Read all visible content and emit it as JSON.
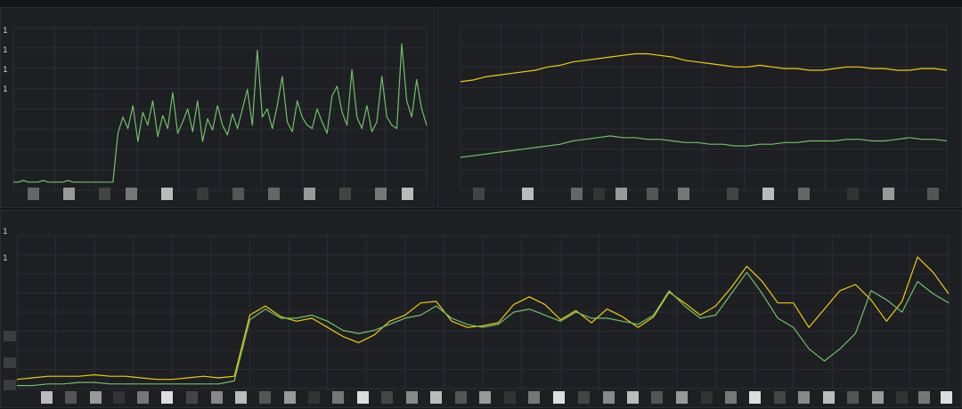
{
  "colors": {
    "green": "#73bf69",
    "yellow": "#f2cc0c",
    "grid": "#2b2e33",
    "panel_bg": "#1d1f23",
    "page_bg": "#141518"
  },
  "panels": {
    "top_left": {
      "y_ticks": [
        "1",
        "1",
        "1",
        "1"
      ],
      "series": [
        {
          "color": "green",
          "style": "spiky"
        }
      ]
    },
    "top_right": {
      "y_ticks": [],
      "series": [
        {
          "color": "yellow"
        },
        {
          "color": "green"
        }
      ]
    },
    "bottom": {
      "y_ticks": [
        "1",
        "1"
      ],
      "series": [
        {
          "color": "yellow"
        },
        {
          "color": "green"
        }
      ]
    }
  },
  "chart_data": [
    {
      "type": "line",
      "title": "",
      "xlabel": "",
      "ylabel": "",
      "grid": true,
      "series": [
        {
          "color": "#73bf69",
          "y": [
            0.05,
            0.05,
            0.06,
            0.05,
            0.05,
            0.05,
            0.06,
            0.05,
            0.05,
            0.05,
            0.05,
            0.06,
            0.05,
            0.05,
            0.05,
            0.05,
            0.05,
            0.05,
            0.05,
            0.05,
            0.05,
            0.35,
            0.45,
            0.38,
            0.52,
            0.3,
            0.48,
            0.4,
            0.55,
            0.33,
            0.46,
            0.38,
            0.6,
            0.35,
            0.42,
            0.5,
            0.36,
            0.55,
            0.3,
            0.44,
            0.37,
            0.52,
            0.4,
            0.34,
            0.47,
            0.38,
            0.5,
            0.62,
            0.4,
            0.86,
            0.45,
            0.5,
            0.38,
            0.52,
            0.7,
            0.42,
            0.36,
            0.55,
            0.45,
            0.4,
            0.38,
            0.5,
            0.42,
            0.35,
            0.58,
            0.64,
            0.48,
            0.4,
            0.74,
            0.45,
            0.38,
            0.52,
            0.36,
            0.42,
            0.7,
            0.45,
            0.4,
            0.38,
            0.9,
            0.55,
            0.45,
            0.68,
            0.5,
            0.4
          ]
        }
      ]
    },
    {
      "type": "line",
      "title": "",
      "xlabel": "",
      "ylabel": "",
      "grid": true,
      "series": [
        {
          "color": "#f2cc0c",
          "y": [
            0.66,
            0.67,
            0.69,
            0.7,
            0.71,
            0.72,
            0.73,
            0.75,
            0.76,
            0.78,
            0.79,
            0.8,
            0.81,
            0.82,
            0.83,
            0.83,
            0.82,
            0.81,
            0.79,
            0.78,
            0.77,
            0.76,
            0.75,
            0.75,
            0.76,
            0.75,
            0.74,
            0.74,
            0.73,
            0.73,
            0.74,
            0.75,
            0.75,
            0.74,
            0.74,
            0.73,
            0.73,
            0.74,
            0.74,
            0.73
          ]
        },
        {
          "color": "#73bf69",
          "y": [
            0.2,
            0.21,
            0.22,
            0.23,
            0.24,
            0.25,
            0.26,
            0.27,
            0.28,
            0.3,
            0.31,
            0.32,
            0.33,
            0.32,
            0.32,
            0.31,
            0.31,
            0.3,
            0.29,
            0.29,
            0.28,
            0.28,
            0.27,
            0.27,
            0.28,
            0.28,
            0.29,
            0.29,
            0.3,
            0.3,
            0.3,
            0.31,
            0.31,
            0.3,
            0.3,
            0.31,
            0.32,
            0.31,
            0.31,
            0.3
          ]
        }
      ]
    },
    {
      "type": "line",
      "title": "",
      "xlabel": "",
      "ylabel": "",
      "grid": true,
      "series": [
        {
          "color": "#f2cc0c",
          "y": [
            0.06,
            0.07,
            0.08,
            0.08,
            0.08,
            0.09,
            0.08,
            0.08,
            0.07,
            0.06,
            0.06,
            0.07,
            0.08,
            0.07,
            0.08,
            0.48,
            0.54,
            0.47,
            0.44,
            0.46,
            0.4,
            0.34,
            0.3,
            0.35,
            0.44,
            0.48,
            0.56,
            0.57,
            0.44,
            0.4,
            0.41,
            0.43,
            0.55,
            0.6,
            0.55,
            0.45,
            0.51,
            0.43,
            0.52,
            0.47,
            0.4,
            0.47,
            0.63,
            0.56,
            0.48,
            0.54,
            0.66,
            0.8,
            0.7,
            0.56,
            0.56,
            0.4,
            0.52,
            0.64,
            0.68,
            0.58,
            0.44,
            0.57,
            0.86,
            0.76,
            0.62
          ]
        },
        {
          "color": "#73bf69",
          "y": [
            0.02,
            0.02,
            0.03,
            0.03,
            0.04,
            0.04,
            0.03,
            0.03,
            0.03,
            0.03,
            0.03,
            0.03,
            0.03,
            0.03,
            0.05,
            0.45,
            0.52,
            0.46,
            0.46,
            0.48,
            0.44,
            0.38,
            0.36,
            0.38,
            0.42,
            0.46,
            0.48,
            0.54,
            0.46,
            0.42,
            0.4,
            0.42,
            0.5,
            0.52,
            0.48,
            0.44,
            0.5,
            0.46,
            0.46,
            0.44,
            0.42,
            0.48,
            0.64,
            0.54,
            0.46,
            0.48,
            0.62,
            0.76,
            0.62,
            0.46,
            0.4,
            0.26,
            0.18,
            0.26,
            0.36,
            0.64,
            0.58,
            0.5,
            0.7,
            0.62,
            0.56
          ]
        }
      ]
    }
  ]
}
